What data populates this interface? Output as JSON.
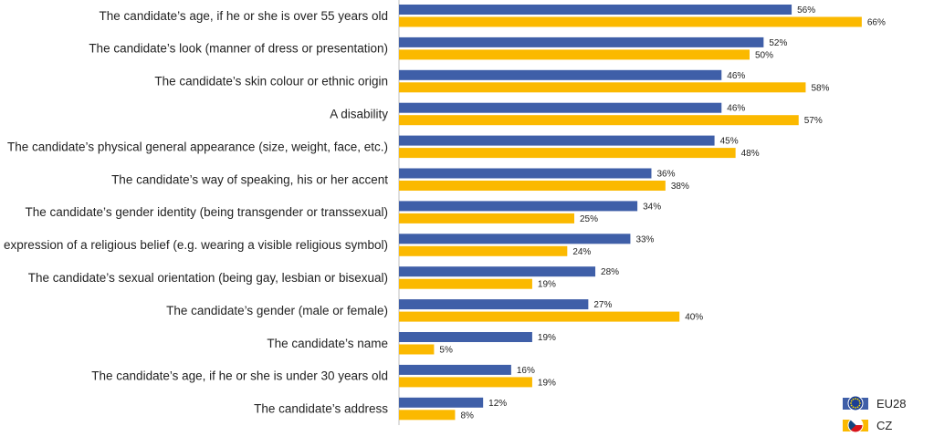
{
  "chart_data": {
    "type": "bar",
    "orientation": "horizontal",
    "categories": [
      "The candidate’s age, if he or she is over 55 years old",
      "The candidate’s look (manner of dress or presentation)",
      "The candidate’s skin colour or ethnic origin",
      "A disability",
      "The candidate’s physical general appearance (size, weight, face, etc.)",
      "The candidate’s way of speaking, his or her accent",
      "The candidate’s gender identity (being transgender or transsexual)",
      "The expression of a religious belief (e.g. wearing a visible religious symbol)",
      "The candidate’s sexual orientation (being gay, lesbian or bisexual)",
      "The candidate’s gender (male or female)",
      "The candidate’s name",
      "The candidate’s age, if he or she is under 30 years old",
      "The candidate’s address"
    ],
    "series": [
      {
        "name": "EU28",
        "color": "#3f5fa8",
        "icon": "eu-flag-icon",
        "values": [
          56,
          52,
          46,
          46,
          45,
          36,
          34,
          33,
          28,
          27,
          19,
          16,
          12
        ],
        "labels": [
          "56%",
          "52%",
          "46%",
          "46%",
          "45%",
          "36%",
          "34%",
          "33%",
          "28%",
          "27%",
          "19%",
          "16%",
          "12%"
        ]
      },
      {
        "name": "CZ",
        "color": "#fbb900",
        "icon": "czech-flag-icon",
        "values": [
          66,
          50,
          58,
          57,
          48,
          38,
          25,
          24,
          19,
          40,
          5,
          19,
          8
        ],
        "labels": [
          "66%",
          "50%",
          "58%",
          "57%",
          "48%",
          "38%",
          "25%",
          "24%",
          "19%",
          "40%",
          "5%",
          "19%",
          "8%"
        ]
      }
    ],
    "xlim": [
      0,
      70
    ],
    "grid": false,
    "legend_position": "bottom-right",
    "title": "",
    "xlabel": "",
    "ylabel": ""
  }
}
